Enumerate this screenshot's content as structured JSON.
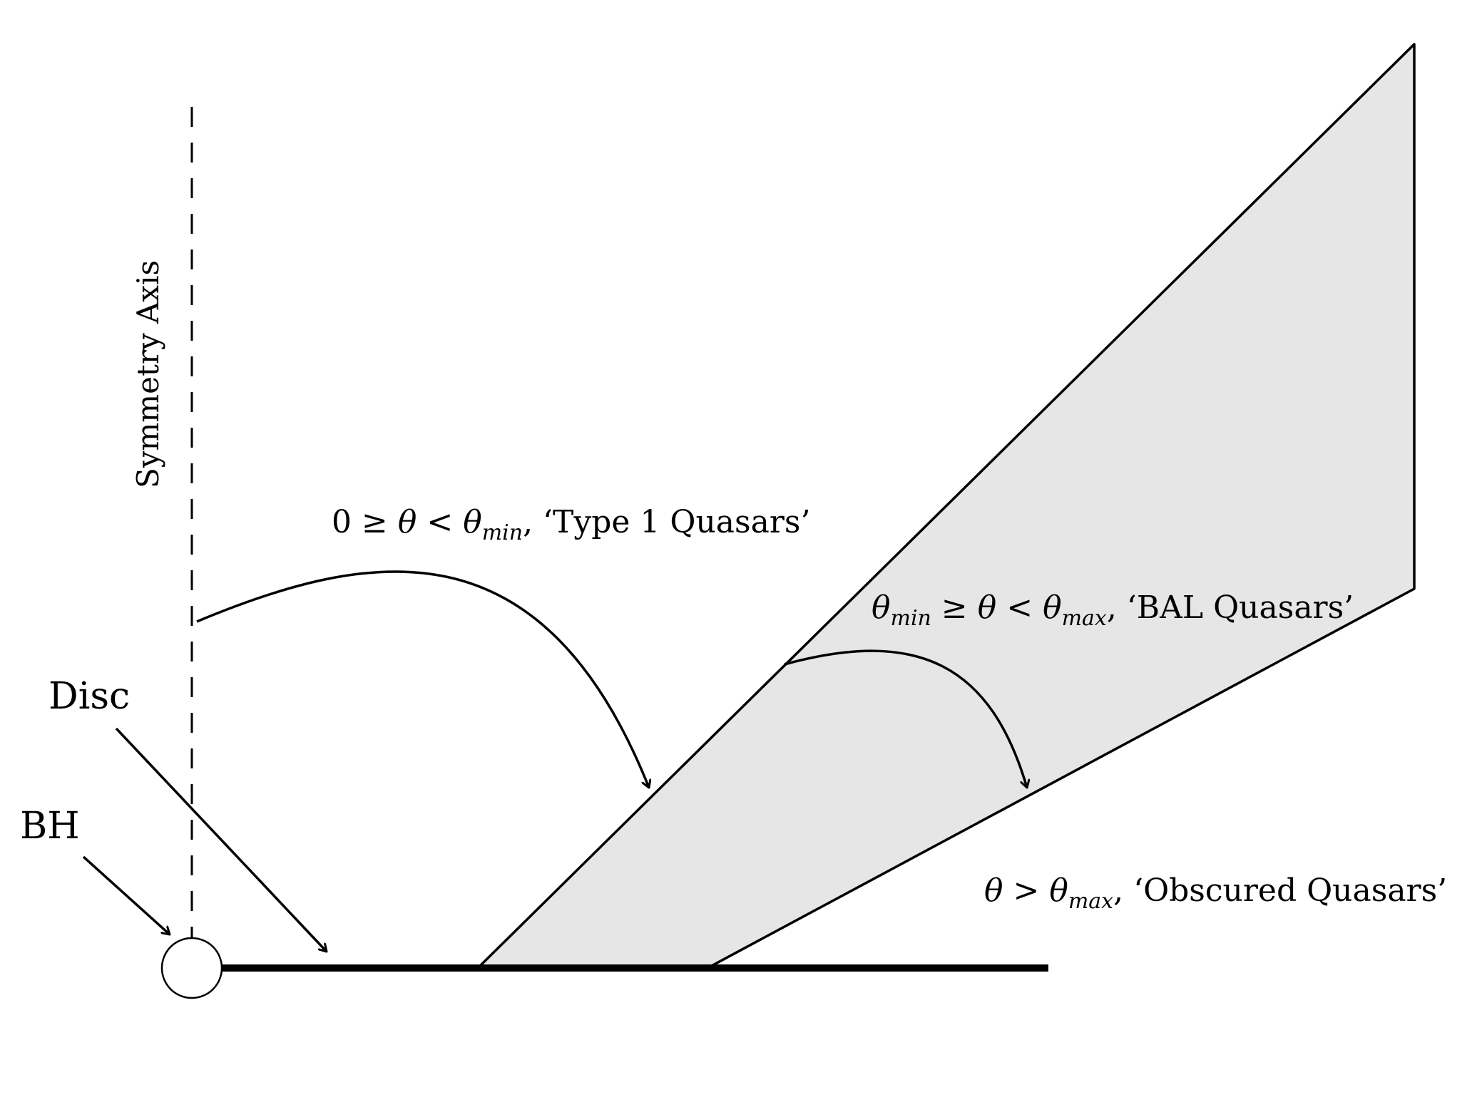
{
  "labels": {
    "symmetry_axis": "Symmetry Axis",
    "disc": "Disc",
    "bh": "BH"
  },
  "regions": [
    {
      "id": "type1",
      "prefix": "0 ≥ ",
      "theta": "θ",
      "mid": " < ",
      "theta2": "θ",
      "sub": "min",
      "suffix": ", ‘Type 1 Quasars’"
    },
    {
      "id": "bal",
      "theta1": "θ",
      "sub1": "min",
      "mid1": " ≥ ",
      "theta2": "θ",
      "mid2": " < ",
      "theta3": "θ",
      "sub3": "max",
      "suffix": ", ‘BAL Quasars’"
    },
    {
      "id": "obscured",
      "theta1": "θ",
      "mid": " > ",
      "theta2": "θ",
      "sub": "max",
      "suffix": ", ‘Obscured Quasars’"
    }
  ],
  "colors": {
    "wind_fill": "#e6e6e6",
    "stroke": "#000000",
    "background": "#ffffff"
  }
}
